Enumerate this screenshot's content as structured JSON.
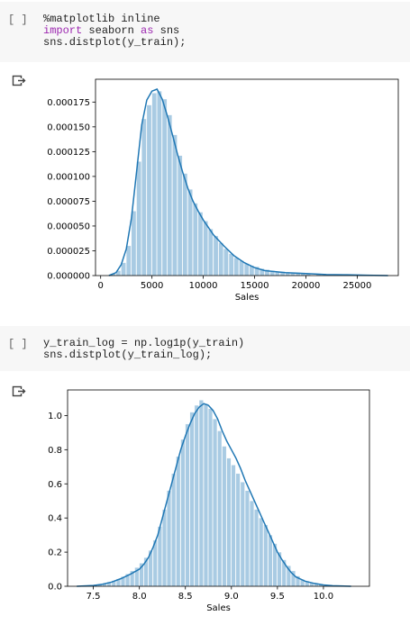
{
  "cell1": {
    "prompt": "[ ]",
    "lines": [
      [
        {
          "t": "%matplotlib inline",
          "k": false
        }
      ],
      [
        {
          "t": "import",
          "k": true
        },
        {
          "t": " seaborn ",
          "k": false
        },
        {
          "t": "as",
          "k": true
        },
        {
          "t": " sns",
          "k": false
        }
      ],
      [
        {
          "t": "sns.distplot(y_train);",
          "k": false
        }
      ]
    ]
  },
  "cell2": {
    "prompt": "[ ]",
    "lines": [
      [
        {
          "t": "y_train_log = np.log1p(y_train)",
          "k": false
        }
      ],
      [
        {
          "t": "sns.distplot(y_train_log);",
          "k": false
        }
      ]
    ]
  },
  "colors": {
    "hist": "#a9cbe3",
    "kde": "#1f77b4",
    "keyword": "#9c27b0"
  },
  "output_icon": "output-arrow-icon",
  "chart_data": [
    {
      "type": "histogram+kde",
      "xlabel": "Sales",
      "xlim": [
        -500,
        29000
      ],
      "ylim": [
        0,
        0.000198
      ],
      "xticks": [
        0,
        5000,
        10000,
        15000,
        20000,
        25000
      ],
      "xticklabels": [
        "0",
        "5000",
        "10000",
        "15000",
        "20000",
        "25000"
      ],
      "yticks": [
        0,
        2.5e-05,
        5e-05,
        7.5e-05,
        0.0001,
        0.000125,
        0.00015,
        0.000175
      ],
      "yticklabels": [
        "0.000000",
        "0.000025",
        "0.000050",
        "0.000075",
        "0.000100",
        "0.000125",
        "0.000150",
        "0.000175"
      ],
      "bin_width": 500,
      "bins_x": [
        1000,
        1500,
        2000,
        2500,
        3000,
        3500,
        4000,
        4500,
        5000,
        5500,
        6000,
        6500,
        7000,
        7500,
        8000,
        8500,
        9000,
        9500,
        10000,
        10500,
        11000,
        11500,
        12000,
        12500,
        13000,
        13500,
        14000,
        14500,
        15000,
        15500,
        16000,
        16500,
        17000,
        17500,
        18000,
        18500,
        19000,
        19500,
        20000,
        21000,
        22000,
        23000,
        24000,
        25000,
        26000,
        27000
      ],
      "bins_y": [
        2e-06,
        5e-06,
        1.3e-05,
        3e-05,
        6.5e-05,
        0.000115,
        0.000158,
        0.000172,
        0.000184,
        0.000186,
        0.000178,
        0.000162,
        0.000142,
        0.000121,
        0.000103,
        8.7e-05,
        7.3e-05,
        6.4e-05,
        5.5e-05,
        4.7e-05,
        4e-05,
        3.3e-05,
        2.7e-05,
        2.2e-05,
        1.8e-05,
        1.5e-05,
        1.2e-05,
        1e-05,
        9e-06,
        7e-06,
        6e-06,
        5e-06,
        4e-06,
        4e-06,
        3e-06,
        3e-06,
        3e-06,
        2e-06,
        2e-06,
        2e-06,
        1e-06,
        1e-06,
        1e-06,
        1e-06,
        5e-07,
        5e-07
      ],
      "kde_x": [
        800,
        1500,
        2000,
        2500,
        3000,
        3500,
        4000,
        4500,
        5000,
        5500,
        6000,
        6500,
        7000,
        7500,
        8000,
        8500,
        9000,
        9500,
        10000,
        11000,
        12000,
        13000,
        14000,
        15000,
        16000,
        17000,
        18000,
        20000,
        22000,
        24000,
        26000,
        28000
      ],
      "kde_y": [
        0,
        3e-06,
        1.1e-05,
        2.7e-05,
        5.8e-05,
        0.000105,
        0.000152,
        0.000177,
        0.000186,
        0.000188,
        0.000178,
        0.000161,
        0.000142,
        0.000122,
        0.000104,
        8.8e-05,
        7.5e-05,
        6.5e-05,
        5.6e-05,
        4.1e-05,
        3e-05,
        2e-05,
        1.3e-05,
        8e-06,
        5e-06,
        4e-06,
        3e-06,
        2e-06,
        1e-06,
        8e-07,
        4e-07,
        0
      ]
    },
    {
      "type": "histogram+kde",
      "xlabel": "Sales",
      "xlim": [
        7.22,
        10.5
      ],
      "ylim": [
        0,
        1.15
      ],
      "xticks": [
        7.5,
        8.0,
        8.5,
        9.0,
        9.5,
        10.0
      ],
      "xticklabels": [
        "7.5",
        "8.0",
        "8.5",
        "9.0",
        "9.5",
        "10.0"
      ],
      "yticks": [
        0,
        0.2,
        0.4,
        0.6,
        0.8,
        1.0
      ],
      "yticklabels": [
        "0.0",
        "0.2",
        "0.4",
        "0.6",
        "0.8",
        "1.0"
      ],
      "bin_width": 0.05,
      "bins_x": [
        7.3,
        7.35,
        7.4,
        7.45,
        7.5,
        7.55,
        7.6,
        7.65,
        7.7,
        7.75,
        7.8,
        7.85,
        7.9,
        7.95,
        8.0,
        8.05,
        8.1,
        8.15,
        8.2,
        8.25,
        8.3,
        8.35,
        8.4,
        8.45,
        8.5,
        8.55,
        8.6,
        8.65,
        8.7,
        8.75,
        8.8,
        8.85,
        8.9,
        8.95,
        9.0,
        9.05,
        9.1,
        9.15,
        9.2,
        9.25,
        9.3,
        9.35,
        9.4,
        9.45,
        9.5,
        9.55,
        9.6,
        9.65,
        9.7,
        9.75,
        9.8,
        9.85,
        9.9,
        9.95,
        10.0,
        10.05,
        10.1,
        10.15,
        10.2,
        10.25
      ],
      "bins_y": [
        0.002,
        0.003,
        0.004,
        0.006,
        0.009,
        0.013,
        0.018,
        0.025,
        0.033,
        0.044,
        0.057,
        0.072,
        0.09,
        0.11,
        0.135,
        0.168,
        0.21,
        0.27,
        0.35,
        0.45,
        0.56,
        0.66,
        0.76,
        0.86,
        0.95,
        1.02,
        1.06,
        1.09,
        1.07,
        1.04,
        0.98,
        0.91,
        0.82,
        0.75,
        0.71,
        0.66,
        0.61,
        0.56,
        0.5,
        0.45,
        0.4,
        0.36,
        0.3,
        0.25,
        0.2,
        0.155,
        0.12,
        0.09,
        0.06,
        0.04,
        0.03,
        0.02,
        0.015,
        0.01,
        0.007,
        0.005,
        0.003,
        0.002,
        0.001,
        0.001
      ],
      "kde_x": [
        7.32,
        7.5,
        7.6,
        7.7,
        7.8,
        7.9,
        8.0,
        8.05,
        8.1,
        8.15,
        8.2,
        8.25,
        8.3,
        8.35,
        8.4,
        8.45,
        8.5,
        8.55,
        8.6,
        8.65,
        8.7,
        8.75,
        8.8,
        8.85,
        8.9,
        8.95,
        9.0,
        9.05,
        9.1,
        9.15,
        9.2,
        9.25,
        9.3,
        9.35,
        9.4,
        9.45,
        9.5,
        9.55,
        9.6,
        9.65,
        9.7,
        9.8,
        9.9,
        10.0,
        10.1,
        10.3
      ],
      "kde_y": [
        0.0,
        0.005,
        0.012,
        0.025,
        0.045,
        0.07,
        0.1,
        0.13,
        0.17,
        0.23,
        0.3,
        0.4,
        0.5,
        0.6,
        0.7,
        0.8,
        0.88,
        0.95,
        1.01,
        1.05,
        1.07,
        1.06,
        1.03,
        0.98,
        0.91,
        0.85,
        0.8,
        0.75,
        0.69,
        0.62,
        0.56,
        0.5,
        0.44,
        0.38,
        0.32,
        0.26,
        0.2,
        0.155,
        0.115,
        0.08,
        0.055,
        0.03,
        0.017,
        0.008,
        0.003,
        0.0
      ]
    }
  ]
}
